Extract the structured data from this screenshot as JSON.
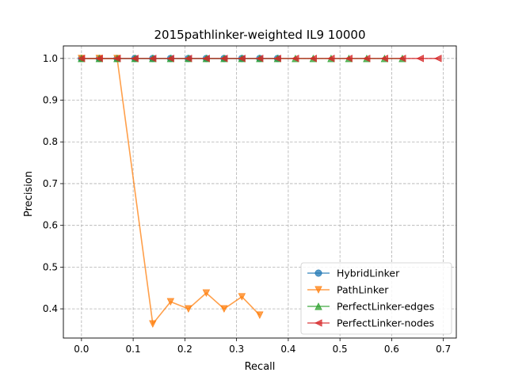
{
  "chart_data": {
    "type": "line",
    "title": "2015pathlinker-weighted IL9 10000",
    "xlabel": "Recall",
    "ylabel": "Precision",
    "xlim": [
      -0.035,
      0.725
    ],
    "ylim": [
      0.33,
      1.03
    ],
    "xticks": [
      0.0,
      0.1,
      0.2,
      0.3,
      0.4,
      0.5,
      0.6,
      0.7
    ],
    "xtick_labels": [
      "0.0",
      "0.1",
      "0.2",
      "0.3",
      "0.4",
      "0.5",
      "0.6",
      "0.7"
    ],
    "yticks": [
      0.4,
      0.5,
      0.6,
      0.7,
      0.8,
      0.9,
      1.0
    ],
    "ytick_labels": [
      "0.4",
      "0.5",
      "0.6",
      "0.7",
      "0.8",
      "0.9",
      "1.0"
    ],
    "grid": true,
    "legend_position": "lower-right",
    "series": [
      {
        "name": "HybridLinker",
        "color": "#1f77b4",
        "marker": "circle",
        "x": [
          0.0,
          0.0345,
          0.069,
          0.1034,
          0.1379,
          0.1724,
          0.2069,
          0.2414,
          0.2759,
          0.3103,
          0.3448,
          0.3793
        ],
        "y": [
          1.0,
          1.0,
          1.0,
          1.0,
          1.0,
          1.0,
          1.0,
          1.0,
          1.0,
          1.0,
          1.0,
          1.0
        ]
      },
      {
        "name": "PathLinker",
        "color": "#ff7f0e",
        "marker": "triangle-down",
        "x": [
          0.0,
          0.0345,
          0.069,
          0.1379,
          0.1724,
          0.2069,
          0.2414,
          0.2759,
          0.3103,
          0.3448
        ],
        "y": [
          1.0,
          1.0,
          1.0,
          0.364,
          0.417,
          0.4,
          0.438,
          0.4,
          0.429,
          0.385
        ]
      },
      {
        "name": "PerfectLinker-edges",
        "color": "#2ca02c",
        "marker": "triangle-up",
        "x": [
          0.0,
          0.0345,
          0.069,
          0.1034,
          0.1379,
          0.1724,
          0.2069,
          0.2414,
          0.2759,
          0.3103,
          0.3448,
          0.3793,
          0.4138,
          0.4483,
          0.4828,
          0.5172,
          0.5517,
          0.5862,
          0.6207
        ],
        "y": [
          1.0,
          1.0,
          1.0,
          1.0,
          1.0,
          1.0,
          1.0,
          1.0,
          1.0,
          1.0,
          1.0,
          1.0,
          1.0,
          1.0,
          1.0,
          1.0,
          1.0,
          1.0,
          1.0
        ]
      },
      {
        "name": "PerfectLinker-nodes",
        "color": "#d62728",
        "marker": "triangle-left",
        "x": [
          0.0,
          0.0345,
          0.069,
          0.1034,
          0.1379,
          0.1724,
          0.2069,
          0.2414,
          0.2759,
          0.3103,
          0.3448,
          0.3793,
          0.4138,
          0.4483,
          0.4828,
          0.5172,
          0.5517,
          0.5862,
          0.6207,
          0.6552,
          0.6897
        ],
        "y": [
          1.0,
          1.0,
          1.0,
          1.0,
          1.0,
          1.0,
          1.0,
          1.0,
          1.0,
          1.0,
          1.0,
          1.0,
          1.0,
          1.0,
          1.0,
          1.0,
          1.0,
          1.0,
          1.0,
          1.0,
          1.0
        ]
      }
    ]
  }
}
